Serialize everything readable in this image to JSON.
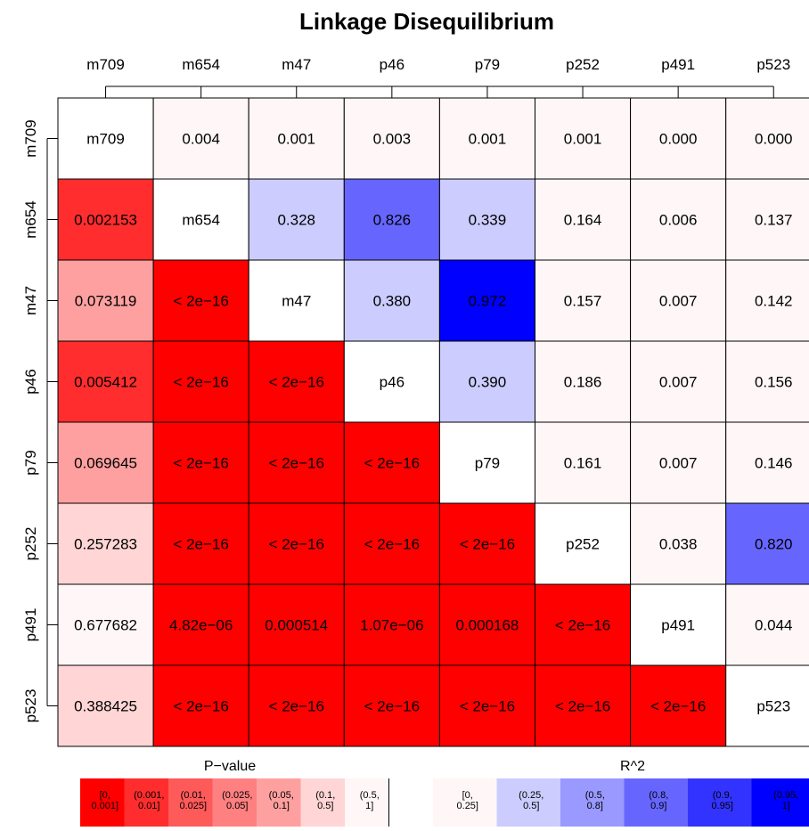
{
  "chart_data": {
    "type": "heatmap",
    "title": "Linkage Disequilibrium",
    "markers": [
      "m709",
      "m654",
      "m47",
      "p46",
      "p79",
      "p252",
      "p491",
      "p523"
    ],
    "cells": [
      [
        "m709",
        "0.004",
        "0.001",
        "0.003",
        "0.001",
        "0.001",
        "0.000",
        "0.000"
      ],
      [
        "0.002153",
        "m654",
        "0.328",
        "0.826",
        "0.339",
        "0.164",
        "0.006",
        "0.137"
      ],
      [
        "0.073119",
        "< 2e−16",
        "m47",
        "0.380",
        "0.972",
        "0.157",
        "0.007",
        "0.142"
      ],
      [
        "0.005412",
        "< 2e−16",
        "< 2e−16",
        "p46",
        "0.390",
        "0.186",
        "0.007",
        "0.156"
      ],
      [
        "0.069645",
        "< 2e−16",
        "< 2e−16",
        "< 2e−16",
        "p79",
        "0.161",
        "0.007",
        "0.146"
      ],
      [
        "0.257283",
        "< 2e−16",
        "< 2e−16",
        "< 2e−16",
        "< 2e−16",
        "p252",
        "0.038",
        "0.820"
      ],
      [
        "0.677682",
        "4.82e−06",
        "0.000514",
        "1.07e−06",
        "0.000168",
        "< 2e−16",
        "p491",
        "0.044"
      ],
      [
        "0.388425",
        "< 2e−16",
        "< 2e−16",
        "< 2e−16",
        "< 2e−16",
        "< 2e−16",
        "< 2e−16",
        "p523"
      ]
    ],
    "fills": [
      [
        "#ffffff",
        "#fff7f7",
        "#fff7f7",
        "#fff7f7",
        "#fff7f7",
        "#fff7f7",
        "#fff7f7",
        "#fff7f7"
      ],
      [
        "#ff2d2d",
        "#ffffff",
        "#ccccff",
        "#6666ff",
        "#ccccff",
        "#fff7f7",
        "#fff7f7",
        "#fff7f7"
      ],
      [
        "#ffa0a0",
        "#ff0000",
        "#ffffff",
        "#ccccff",
        "#0000ff",
        "#fff7f7",
        "#fff7f7",
        "#fff7f7"
      ],
      [
        "#ff2d2d",
        "#ff0000",
        "#ff0000",
        "#ffffff",
        "#ccccff",
        "#fff7f7",
        "#fff7f7",
        "#fff7f7"
      ],
      [
        "#ffa0a0",
        "#ff0000",
        "#ff0000",
        "#ff0000",
        "#ffffff",
        "#fff7f7",
        "#fff7f7",
        "#fff7f7"
      ],
      [
        "#ffd5d5",
        "#ff0000",
        "#ff0000",
        "#ff0000",
        "#ff0000",
        "#ffffff",
        "#fff7f7",
        "#6666ff"
      ],
      [
        "#fff7f7",
        "#ff0000",
        "#ff0000",
        "#ff0000",
        "#ff0000",
        "#ff0000",
        "#ffffff",
        "#fff7f7"
      ],
      [
        "#ffd5d5",
        "#ff0000",
        "#ff0000",
        "#ff0000",
        "#ff0000",
        "#ff0000",
        "#ff0000",
        "#ffffff"
      ]
    ],
    "legend": {
      "pvalue": {
        "title": "P−value",
        "bins": [
          {
            "label": [
              "[0,",
              "0.001]"
            ],
            "color": "#ff0000"
          },
          {
            "label": [
              "(0.001,",
              "0.01]"
            ],
            "color": "#ff2d2d"
          },
          {
            "label": [
              "(0.01,",
              "0.025]"
            ],
            "color": "#ff5a5a"
          },
          {
            "label": [
              "(0.025,",
              "0.05]"
            ],
            "color": "#ff8080"
          },
          {
            "label": [
              "(0.05,",
              "0.1]"
            ],
            "color": "#ffa0a0"
          },
          {
            "label": [
              "(0.1,",
              "0.5]"
            ],
            "color": "#ffd5d5"
          },
          {
            "label": [
              "(0.5,",
              "1]"
            ],
            "color": "#fff7f7"
          }
        ]
      },
      "r2": {
        "title": "R^2",
        "bins": [
          {
            "label": [
              "[0,",
              "0.25]"
            ],
            "color": "#fff7f7"
          },
          {
            "label": [
              "(0.25,",
              "0.5]"
            ],
            "color": "#ccccff"
          },
          {
            "label": [
              "(0.5,",
              "0.8]"
            ],
            "color": "#9999ff"
          },
          {
            "label": [
              "(0.8,",
              "0.9]"
            ],
            "color": "#6666ff"
          },
          {
            "label": [
              "(0.9,",
              "0.95]"
            ],
            "color": "#3333ff"
          },
          {
            "label": [
              "(0.95,",
              "1]"
            ],
            "color": "#0000ff"
          }
        ]
      }
    }
  }
}
